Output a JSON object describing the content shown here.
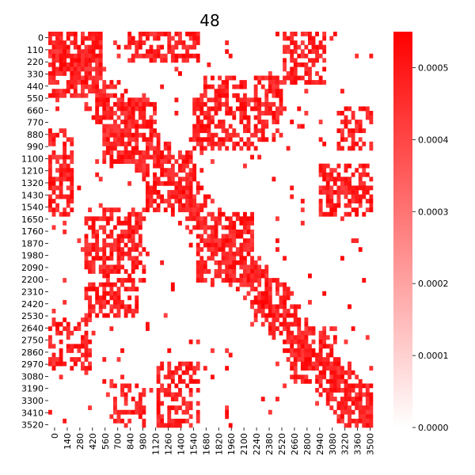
{
  "chart_data": {
    "type": "heatmap",
    "title": "48",
    "xlabel": "",
    "ylabel": "",
    "x_tick_labels": [
      "0",
      "140",
      "280",
      "420",
      "560",
      "700",
      "840",
      "980",
      "1120",
      "1260",
      "1400",
      "1540",
      "1680",
      "1820",
      "1960",
      "2100",
      "2240",
      "2380",
      "2520",
      "2660",
      "2800",
      "2940",
      "3080",
      "3220",
      "3360",
      "3500"
    ],
    "y_tick_labels": [
      "0",
      "110",
      "220",
      "330",
      "440",
      "550",
      "660",
      "770",
      "880",
      "990",
      "1100",
      "1210",
      "1320",
      "1430",
      "1540",
      "1650",
      "1760",
      "1870",
      "1980",
      "2090",
      "2200",
      "2310",
      "2420",
      "2530",
      "2640",
      "2750",
      "2860",
      "2970",
      "3080",
      "3190",
      "3300",
      "3410",
      "3520"
    ],
    "matrix_size": 3600,
    "colorbar": {
      "min": 0,
      "max": 0.00055,
      "tick_labels": [
        "0.0000",
        "0.0001",
        "0.0002",
        "0.0003",
        "0.0004",
        "0.0005"
      ],
      "color_low": "#ffffff",
      "color_high": "#ff0000"
    },
    "blocks": [
      {
        "r": [
          0,
          600
        ],
        "c": [
          0,
          600
        ],
        "v": 0.00045
      },
      {
        "r": [
          600,
          1200
        ],
        "c": [
          600,
          1200
        ],
        "v": 0.0005
      },
      {
        "r": [
          1100,
          1650
        ],
        "c": [
          1100,
          1650
        ],
        "v": 0.00045
      },
      {
        "r": [
          1650,
          2300
        ],
        "c": [
          1650,
          2300
        ],
        "v": 0.00045
      },
      {
        "r": [
          2300,
          2700
        ],
        "c": [
          2300,
          2700
        ],
        "v": 0.0004
      },
      {
        "r": [
          2700,
          3200
        ],
        "c": [
          2700,
          3200
        ],
        "v": 0.00045
      },
      {
        "r": [
          3200,
          3600
        ],
        "c": [
          3200,
          3600
        ],
        "v": 0.0005
      },
      {
        "r": [
          0,
          300
        ],
        "c": [
          900,
          1700
        ],
        "v": 0.0004
      },
      {
        "r": [
          1300,
          1700
        ],
        "c": [
          3000,
          3600
        ],
        "v": 0.00035
      },
      {
        "r": [
          2300,
          2600
        ],
        "c": [
          400,
          1000
        ],
        "v": 0.0004
      },
      {
        "r": [
          2600,
          3100
        ],
        "c": [
          0,
          500
        ],
        "v": 0.00035
      },
      {
        "r": [
          600,
          1100
        ],
        "c": [
          1600,
          2300
        ],
        "v": 0.00035
      },
      {
        "r": [
          1700,
          2200
        ],
        "c": [
          400,
          1000
        ],
        "v": 0.0004
      },
      {
        "r": [
          3200,
          3600
        ],
        "c": [
          700,
          1100
        ],
        "v": 0.0003
      },
      {
        "r": [
          3000,
          3600
        ],
        "c": [
          1200,
          1600
        ],
        "v": 0.0004
      }
    ]
  }
}
